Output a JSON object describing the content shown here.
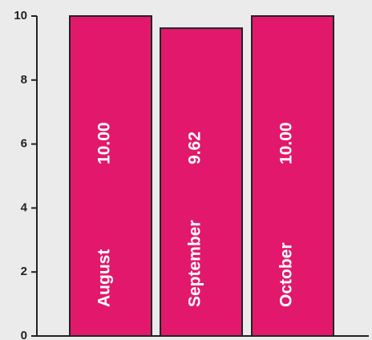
{
  "chart_data": {
    "type": "bar",
    "categories": [
      "August",
      "September",
      "October"
    ],
    "values": [
      10.0,
      9.62,
      10.0
    ],
    "value_labels": [
      "10.00",
      "9.62",
      "10.00"
    ],
    "ylim": [
      0,
      10
    ],
    "yticks": [
      0,
      2,
      4,
      6,
      8,
      10
    ],
    "grid": false,
    "bar_color": "#e2186c",
    "bar_edge_color": "#222222",
    "background": "#ebebeb"
  }
}
